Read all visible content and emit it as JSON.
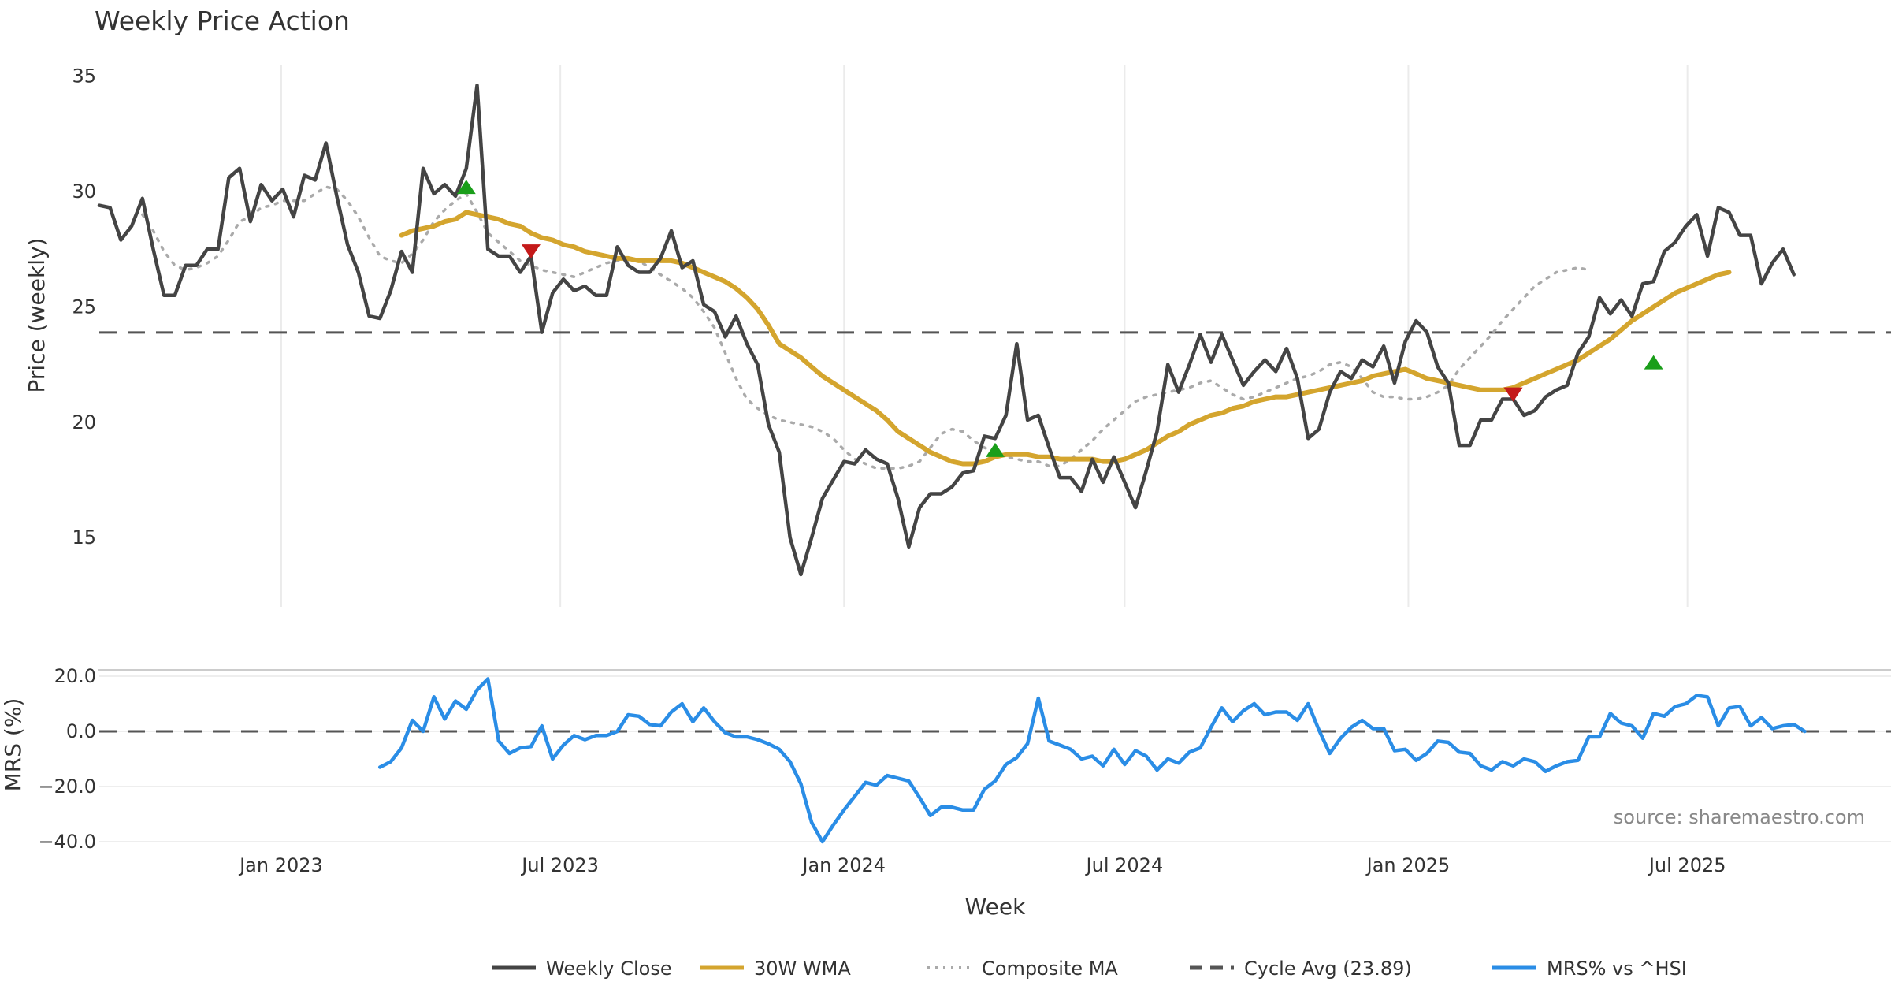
{
  "chart_data": [
    {
      "type": "line",
      "title": "Weekly Price Action",
      "xlabel": "",
      "ylabel": "Price (weekly)",
      "x_start": "2022-09-05",
      "x_range": [
        "2022-09-05",
        "2025-11-10"
      ],
      "ylim": [
        12.0,
        35.5
      ],
      "yticks": [
        15,
        20,
        25,
        30,
        35
      ],
      "xticks": [
        {
          "date": "2023-01-01",
          "label": "Jan 2023"
        },
        {
          "date": "2023-07-01",
          "label": "Jul 2023"
        },
        {
          "date": "2024-01-01",
          "label": "Jan 2024"
        },
        {
          "date": "2024-07-01",
          "label": "Jul 2024"
        },
        {
          "date": "2025-01-01",
          "label": "Jan 2025"
        },
        {
          "date": "2025-07-01",
          "label": "Jul 2025"
        }
      ],
      "grid": true,
      "series": [
        {
          "name": "Weekly Close",
          "color": "#444444",
          "style": "solid",
          "values": [
            29.4,
            29.3,
            27.9,
            28.5,
            29.7,
            27.5,
            25.5,
            25.5,
            26.8,
            26.8,
            27.5,
            27.5,
            30.6,
            31.0,
            28.7,
            30.3,
            29.6,
            30.1,
            28.9,
            30.7,
            30.5,
            32.1,
            29.8,
            27.7,
            26.5,
            24.6,
            24.5,
            25.7,
            27.4,
            26.5,
            31.0,
            29.9,
            30.3,
            29.8,
            31.0,
            34.6,
            27.5,
            27.2,
            27.2,
            26.5,
            27.2,
            23.9,
            25.6,
            26.2,
            25.7,
            25.9,
            25.5,
            25.5,
            27.6,
            26.8,
            26.5,
            26.5,
            27.1,
            28.3,
            26.7,
            27.0,
            25.1,
            24.8,
            23.7,
            24.6,
            23.4,
            22.5,
            19.9,
            18.7,
            15.0,
            13.4,
            15.0,
            16.7,
            17.5,
            18.3,
            18.2,
            18.8,
            18.4,
            18.2,
            16.7,
            14.6,
            16.3,
            16.9,
            16.9,
            17.2,
            17.8,
            17.9,
            19.4,
            19.3,
            20.3,
            23.4,
            20.1,
            20.3,
            18.9,
            17.6,
            17.6,
            17.0,
            18.4,
            17.4,
            18.5,
            17.4,
            16.3,
            17.9,
            19.6,
            22.5,
            21.3,
            22.5,
            23.8,
            22.6,
            23.8,
            22.7,
            21.6,
            22.2,
            22.7,
            22.2,
            23.2,
            21.9,
            19.3,
            19.7,
            21.3,
            22.2,
            21.9,
            22.7,
            22.4,
            23.3,
            21.7,
            23.5,
            24.4,
            23.9,
            22.4,
            21.7,
            19.0,
            19.0,
            20.1,
            20.1,
            21.0,
            21.0,
            20.3,
            20.5,
            21.1,
            21.4,
            21.6,
            23.0,
            23.7,
            25.4,
            24.7,
            25.3,
            24.6,
            26.0,
            26.1,
            27.4,
            27.8,
            28.5,
            29.0,
            27.2,
            29.3,
            29.1,
            28.1,
            28.1,
            26.0,
            26.9,
            27.5,
            26.4
          ]
        },
        {
          "name": "30W WMA",
          "color": "#D4A52E",
          "style": "solid",
          "start_index": 28,
          "values": [
            28.1,
            28.3,
            28.4,
            28.5,
            28.7,
            28.8,
            29.1,
            29.0,
            28.9,
            28.8,
            28.6,
            28.5,
            28.2,
            28.0,
            27.9,
            27.7,
            27.6,
            27.4,
            27.3,
            27.2,
            27.1,
            27.1,
            27.0,
            27.0,
            27.0,
            27.0,
            26.9,
            26.7,
            26.5,
            26.3,
            26.1,
            25.8,
            25.4,
            24.9,
            24.2,
            23.4,
            23.1,
            22.8,
            22.4,
            22.0,
            21.7,
            21.4,
            21.1,
            20.8,
            20.5,
            20.1,
            19.6,
            19.3,
            19.0,
            18.7,
            18.5,
            18.3,
            18.2,
            18.2,
            18.3,
            18.5,
            18.6,
            18.6,
            18.6,
            18.5,
            18.5,
            18.4,
            18.4,
            18.4,
            18.4,
            18.3,
            18.3,
            18.4,
            18.6,
            18.8,
            19.1,
            19.4,
            19.6,
            19.9,
            20.1,
            20.3,
            20.4,
            20.6,
            20.7,
            20.9,
            21.0,
            21.1,
            21.1,
            21.2,
            21.3,
            21.4,
            21.5,
            21.6,
            21.7,
            21.8,
            22.0,
            22.1,
            22.2,
            22.3,
            22.1,
            21.9,
            21.8,
            21.7,
            21.6,
            21.5,
            21.4,
            21.4,
            21.4,
            21.5,
            21.7,
            21.9,
            22.1,
            22.3,
            22.5,
            22.7,
            23.0,
            23.3,
            23.6,
            24.0,
            24.4,
            24.7,
            25.0,
            25.3,
            25.6,
            25.8,
            26.0,
            26.2,
            26.4,
            26.5
          ]
        },
        {
          "name": "Composite MA",
          "color": "#AAAAAA",
          "style": "dotted",
          "start_index": 4,
          "values": [
            29.0,
            28.3,
            27.4,
            26.8,
            26.6,
            26.7,
            26.9,
            27.2,
            27.9,
            28.7,
            28.9,
            29.3,
            29.4,
            29.6,
            29.6,
            29.6,
            29.9,
            30.2,
            30.1,
            29.6,
            28.9,
            28.0,
            27.2,
            27.0,
            26.9,
            27.3,
            27.9,
            28.7,
            29.2,
            29.6,
            29.9,
            29.1,
            28.2,
            27.8,
            27.4,
            27.0,
            26.8,
            26.6,
            26.5,
            26.4,
            26.3,
            26.5,
            26.7,
            26.9,
            27.0,
            27.0,
            27.0,
            26.7,
            26.4,
            26.1,
            25.8,
            25.4,
            24.8,
            24.1,
            23.0,
            21.9,
            21.0,
            20.6,
            20.3,
            20.1,
            20.0,
            19.9,
            19.8,
            19.6,
            19.3,
            18.8,
            18.4,
            18.2,
            18.0,
            18.0,
            18.0,
            18.1,
            18.3,
            18.9,
            19.5,
            19.7,
            19.6,
            19.2,
            18.9,
            18.7,
            18.5,
            18.4,
            18.3,
            18.3,
            18.1,
            18.1,
            18.4,
            18.8,
            19.2,
            19.7,
            20.1,
            20.5,
            20.9,
            21.1,
            21.2,
            21.3,
            21.4,
            21.5,
            21.7,
            21.8,
            21.5,
            21.2,
            21.0,
            21.1,
            21.3,
            21.5,
            21.7,
            21.9,
            22.0,
            22.2,
            22.5,
            22.6,
            22.4,
            21.9,
            21.3,
            21.1,
            21.1,
            21.0,
            21.0,
            21.1,
            21.3,
            21.6,
            22.3,
            22.8,
            23.3,
            23.8,
            24.4,
            24.9,
            25.4,
            25.9,
            26.2,
            26.5,
            26.6,
            26.7,
            26.6
          ]
        },
        {
          "name": "Cycle Avg (23.89)",
          "color": "#555555",
          "style": "dashed",
          "constant": 23.89
        }
      ],
      "markers": [
        {
          "type": "buy",
          "index": 34,
          "value": 30.2,
          "color": "#1A9E1A"
        },
        {
          "type": "sell",
          "index": 40,
          "value": 27.4,
          "color": "#C41A1A"
        },
        {
          "type": "buy",
          "index": 83,
          "value": 18.8,
          "color": "#1A9E1A"
        },
        {
          "type": "sell",
          "index": 131,
          "value": 21.2,
          "color": "#C41A1A"
        },
        {
          "type": "buy",
          "index": 144,
          "value": 22.6,
          "color": "#1A9E1A"
        }
      ]
    },
    {
      "type": "line",
      "title": "",
      "xlabel": "Week",
      "ylabel": "MRS (%)",
      "ylim": [
        -40.0,
        20.0
      ],
      "yticks": [
        {
          "value": 20,
          "label": "20.0"
        },
        {
          "value": 0,
          "label": "0.0"
        },
        {
          "value": -20,
          "label": "−20.0"
        },
        {
          "value": -40,
          "label": "−40.0"
        }
      ],
      "grid": true,
      "series": [
        {
          "name": "MRS% vs ^HSI",
          "color": "#2A8DE6",
          "style": "solid",
          "start_index": 26,
          "values": [
            -13.0,
            -11.0,
            -6.0,
            4.0,
            0.0,
            12.5,
            4.5,
            11.0,
            8.0,
            15.0,
            19.0,
            -3.5,
            -8.0,
            -6.0,
            -5.5,
            2.0,
            -10.0,
            -5.0,
            -1.5,
            -3.0,
            -1.5,
            -1.5,
            0.0,
            6.0,
            5.5,
            2.5,
            2.0,
            7.0,
            10.0,
            3.5,
            8.5,
            3.5,
            -0.5,
            -2.0,
            -2.0,
            -3.0,
            -4.5,
            -6.5,
            -11.0,
            -19.0,
            -33.0,
            -40.0,
            -34.0,
            -28.5,
            -23.5,
            -18.5,
            -19.5,
            -16.0,
            -17.0,
            -18.0,
            -24.0,
            -30.5,
            -27.5,
            -27.5,
            -28.5,
            -28.5,
            -21.0,
            -18.0,
            -12.0,
            -9.5,
            -4.5,
            12.0,
            -3.5,
            -5.0,
            -6.5,
            -10.0,
            -9.0,
            -12.5,
            -6.5,
            -12.0,
            -7.0,
            -9.0,
            -14.0,
            -10.0,
            -11.5,
            -7.5,
            -6.0,
            1.5,
            8.5,
            3.5,
            7.5,
            10.0,
            6.0,
            7.0,
            7.0,
            4.0,
            10.0,
            0.5,
            -8.0,
            -2.5,
            1.5,
            4.0,
            1.0,
            1.0,
            -7.0,
            -6.5,
            -10.5,
            -8.0,
            -3.5,
            -4.0,
            -7.5,
            -8.0,
            -12.5,
            -14.0,
            -11.0,
            -12.5,
            -10.0,
            -11.0,
            -14.5,
            -12.5,
            -11.0,
            -10.5,
            -2.0,
            -2.0,
            6.5,
            3.0,
            2.0,
            -2.5,
            6.5,
            5.5,
            9.0,
            10.0,
            13.0,
            12.5,
            2.0,
            8.5,
            9.0,
            2.0,
            5.0,
            1.0,
            2.0,
            2.5,
            0.0
          ]
        },
        {
          "name": "",
          "color": "#555555",
          "style": "dashed",
          "constant": 0.0
        }
      ]
    }
  ],
  "legend": {
    "placement": "bottom",
    "items": [
      {
        "label": "Weekly Close",
        "color": "#444444",
        "style": "solid"
      },
      {
        "label": "30W WMA",
        "color": "#D4A52E",
        "style": "solid"
      },
      {
        "label": "Composite MA",
        "color": "#AAAAAA",
        "style": "dotted"
      },
      {
        "label": "Cycle Avg (23.89)",
        "color": "#555555",
        "style": "dashed"
      },
      {
        "label": "MRS% vs ^HSI",
        "color": "#2A8DE6",
        "style": "solid"
      }
    ]
  },
  "source_text": "source: sharemaestro.com"
}
